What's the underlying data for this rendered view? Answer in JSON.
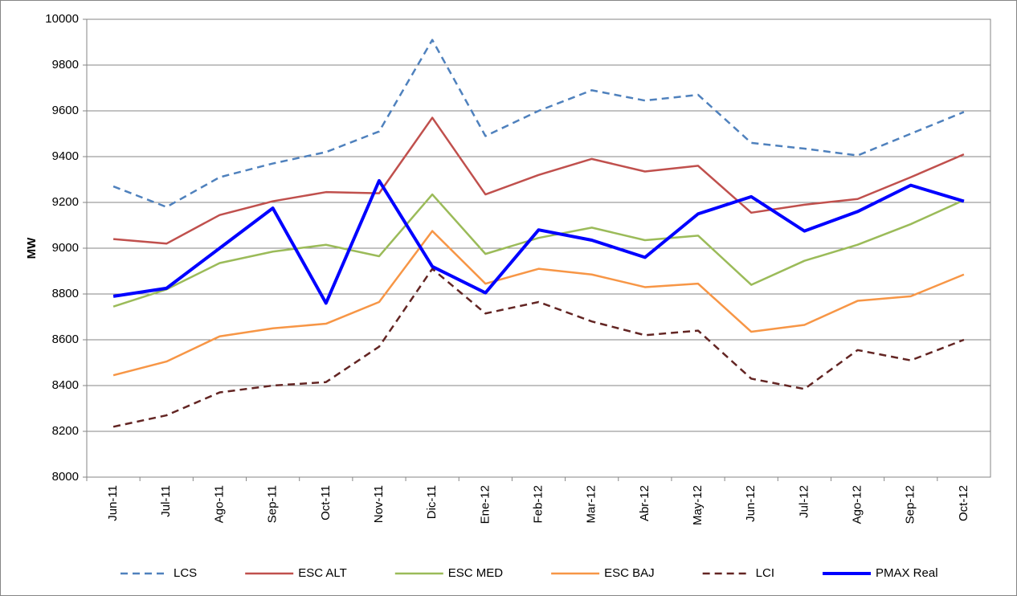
{
  "chart_data": {
    "type": "line",
    "y_label": "MW",
    "categories": [
      "Jun-11",
      "Jul-11",
      "Ago-11",
      "Sep-11",
      "Oct-11",
      "Nov-11",
      "Dic-11",
      "Ene-12",
      "Feb-12",
      "Mar-12",
      "Abr-12",
      "May-12",
      "Jun-12",
      "Jul-12",
      "Ago-12",
      "Sep-12",
      "Oct-12"
    ],
    "series": [
      {
        "name": "LCS",
        "color": "#4f81bd",
        "dashed": true,
        "values": [
          9270,
          9180,
          9310,
          9370,
          9420,
          9510,
          9910,
          9490,
          9600,
          9690,
          9645,
          9670,
          9460,
          9435,
          9405,
          9500,
          9595
        ]
      },
      {
        "name": "ESC ALT",
        "color": "#c0504d",
        "dashed": false,
        "values": [
          9040,
          9020,
          9145,
          9205,
          9245,
          9240,
          9570,
          9235,
          9320,
          9390,
          9335,
          9360,
          9155,
          9190,
          9215,
          9310,
          9410
        ]
      },
      {
        "name": "ESC MED",
        "color": "#9bbb59",
        "dashed": false,
        "values": [
          8745,
          8820,
          8935,
          8985,
          9015,
          8965,
          9235,
          8975,
          9045,
          9090,
          9035,
          9055,
          8840,
          8945,
          9015,
          9105,
          9210
        ]
      },
      {
        "name": "ESC BAJ",
        "color": "#f79646",
        "dashed": false,
        "values": [
          8445,
          8505,
          8615,
          8650,
          8670,
          8765,
          9075,
          8845,
          8910,
          8885,
          8830,
          8845,
          8635,
          8665,
          8770,
          8790,
          8885
        ]
      },
      {
        "name": "LCI",
        "color": "#632523",
        "dashed": true,
        "values": [
          8220,
          8270,
          8370,
          8400,
          8415,
          8570,
          8910,
          8715,
          8765,
          8680,
          8620,
          8640,
          8430,
          8385,
          8555,
          8510,
          8600
        ]
      },
      {
        "name": "PMAX Real",
        "color": "#0000ff",
        "dashed": false,
        "bold": true,
        "values": [
          8790,
          8825,
          9000,
          9175,
          8760,
          9295,
          8920,
          8805,
          9080,
          9035,
          8960,
          9150,
          9225,
          9075,
          9160,
          9275,
          9205
        ]
      }
    ],
    "ylim": [
      8000,
      10000
    ],
    "yticks": [
      8000,
      8200,
      8400,
      8600,
      8800,
      9000,
      9200,
      9400,
      9600,
      9800,
      10000
    ],
    "grid": true,
    "legend": "bottom"
  }
}
